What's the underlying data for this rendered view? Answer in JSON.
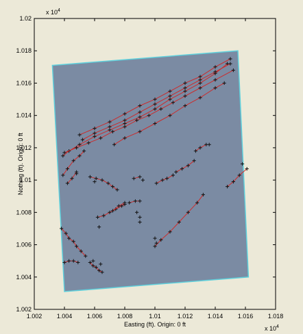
{
  "window": {
    "background": "#ece9d8"
  },
  "chart_data": {
    "type": "line",
    "title": "",
    "xlabel": "Easting (ft). Origin: 0 ft",
    "ylabel": "Nothing (ft). Origin: 0 ft",
    "xlim": [
      10020,
      10180
    ],
    "ylim": [
      10020,
      10200
    ],
    "x_ticks": [
      10020,
      10040,
      10060,
      10080,
      10100,
      10120,
      10140,
      10160,
      10180
    ],
    "y_ticks": [
      10020,
      10040,
      10060,
      10080,
      10100,
      10120,
      10140,
      10160,
      10180,
      10200
    ],
    "x_tick_labels": [
      "1.002",
      "1.004",
      "1.006",
      "1.008",
      "1.01",
      "1.012",
      "1.014",
      "1.016",
      "1.018"
    ],
    "y_tick_labels": [
      "1.002",
      "1.004",
      "1.006",
      "1.008",
      "1.01",
      "1.012",
      "1.014",
      "1.016",
      "1.018",
      "1.02"
    ],
    "x_exponent": {
      "base": "x 10",
      "power": "4"
    },
    "y_exponent": {
      "base": "x 10",
      "power": "4"
    },
    "grid": false,
    "colors": {
      "line": "#cc2b2b",
      "marker": "#111111",
      "image_fill": "#7b8ba3",
      "image_outline": "#5fd0dc"
    },
    "image_polygon": [
      [
        10032,
        10171
      ],
      [
        10155,
        10180
      ],
      [
        10162,
        10040
      ],
      [
        10040,
        10031
      ]
    ],
    "series": [
      {
        "x": [
          10039,
          10043,
          10050,
          10060,
          10070,
          10080,
          10090,
          10100,
          10110,
          10120,
          10130,
          10140,
          10148
        ],
        "y": [
          10115,
          10118,
          10122,
          10127,
          10131,
          10135,
          10139,
          10144,
          10150,
          10155,
          10160,
          10166,
          10172
        ]
      },
      {
        "x": [
          10050,
          10060,
          10070,
          10080,
          10090,
          10100,
          10110,
          10120,
          10130,
          10140,
          10150
        ],
        "y": [
          10128,
          10132,
          10136,
          10141,
          10146,
          10150,
          10155,
          10160,
          10164,
          10170,
          10175
        ]
      },
      {
        "x": [
          10052,
          10060,
          10070,
          10080,
          10090,
          10100,
          10110,
          10120,
          10130,
          10140,
          10150
        ],
        "y": [
          10125,
          10129,
          10133,
          10137,
          10142,
          10147,
          10152,
          10157,
          10162,
          10167,
          10172
        ]
      },
      {
        "x": [
          10040,
          10048,
          10056,
          10064,
          10072,
          10080,
          10088,
          10096,
          10104,
          10112,
          10120,
          10130,
          10140,
          10152
        ],
        "y": [
          10117,
          10120,
          10123,
          10126,
          10130,
          10133,
          10137,
          10140,
          10144,
          10148,
          10152,
          10157,
          10162,
          10168
        ]
      },
      {
        "x": [
          10073,
          10080,
          10090,
          10100,
          10110,
          10120,
          10130,
          10140,
          10146
        ],
        "y": [
          10122,
          10126,
          10130,
          10135,
          10140,
          10146,
          10151,
          10157,
          10160
        ]
      },
      {
        "x": [
          10039,
          10042,
          10046,
          10050,
          10053
        ],
        "y": [
          10103,
          10107,
          10112,
          10115,
          10118
        ]
      },
      {
        "x": [
          10042,
          10045,
          10048
        ],
        "y": [
          10098,
          10101,
          10105
        ]
      },
      {
        "x": [
          10057,
          10061,
          10065,
          10069,
          10072,
          10075
        ],
        "y": [
          10102,
          10101,
          10100,
          10098,
          10096,
          10094
        ]
      },
      {
        "x": [
          10062,
          10066,
          10070,
          10074,
          10078,
          10080
        ],
        "y": [
          10077,
          10078,
          10080,
          10082,
          10084,
          10085
        ]
      },
      {
        "x": [
          10072,
          10076,
          10080
        ],
        "y": [
          10081,
          10084,
          10086
        ]
      },
      {
        "x": [
          10083,
          10087,
          10090
        ],
        "y": [
          10086,
          10087,
          10087
        ]
      },
      {
        "x": [
          10086,
          10090
        ],
        "y": [
          10101,
          10102
        ]
      },
      {
        "x": [
          10101,
          10105,
          10108,
          10112
        ],
        "y": [
          10098,
          10100,
          10101,
          10103
        ]
      },
      {
        "x": [
          10114,
          10118,
          10122,
          10126
        ],
        "y": [
          10105,
          10107,
          10109,
          10112
        ]
      },
      {
        "x": [
          10127,
          10130,
          10134
        ],
        "y": [
          10118,
          10120,
          10122
        ]
      },
      {
        "x": [
          10148,
          10152,
          10156,
          10161
        ],
        "y": [
          10096,
          10099,
          10103,
          10107
        ]
      },
      {
        "x": [
          10100,
          10104,
          10110,
          10116,
          10122,
          10128,
          10132
        ],
        "y": [
          10059,
          10063,
          10068,
          10074,
          10080,
          10086,
          10091
        ]
      },
      {
        "x": [
          10038,
          10041,
          10043,
          10046,
          10048,
          10051,
          10054
        ],
        "y": [
          10070,
          10067,
          10064,
          10062,
          10059,
          10056,
          10053
        ]
      },
      {
        "x": [
          10040,
          10043,
          10046,
          10049
        ],
        "y": [
          10049,
          10050,
          10050,
          10049
        ]
      },
      {
        "x": [
          10057,
          10059,
          10061,
          10063,
          10065
        ],
        "y": [
          10049,
          10047,
          10046,
          10044,
          10043
        ]
      }
    ],
    "markers": [
      [
        10088,
        10080
      ],
      [
        10090,
        10077
      ],
      [
        10090,
        10074
      ],
      [
        10100,
        10064
      ],
      [
        10101,
        10061
      ],
      [
        10048,
        10104
      ],
      [
        10060,
        10099
      ],
      [
        10063,
        10071
      ],
      [
        10059,
        10050
      ],
      [
        10064,
        10048
      ],
      [
        10092,
        10100
      ],
      [
        10136,
        10122
      ],
      [
        10158,
        10110
      ]
    ]
  }
}
